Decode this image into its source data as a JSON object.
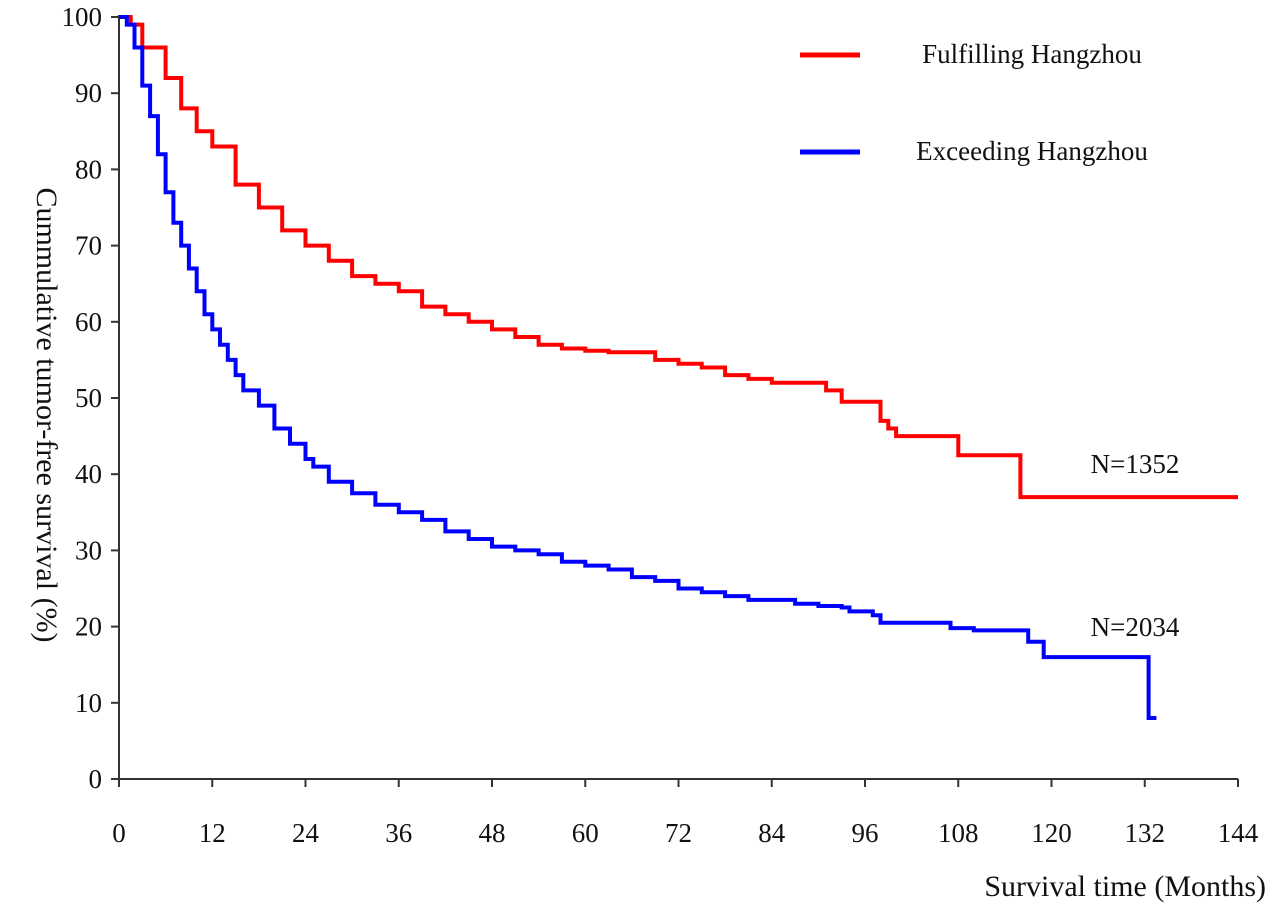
{
  "chart_data": {
    "type": "line",
    "step": true,
    "title": "",
    "xlabel": "Survival time (Months)",
    "ylabel": "Cummulative tumor-free survival (%)",
    "xlim": [
      0,
      144
    ],
    "ylim": [
      0,
      100
    ],
    "xticks": [
      0,
      12,
      24,
      36,
      48,
      60,
      72,
      84,
      96,
      108,
      120,
      132,
      144
    ],
    "yticks": [
      0,
      10,
      20,
      30,
      40,
      50,
      60,
      70,
      80,
      90,
      100
    ],
    "grid": false,
    "legend_position": "top-right",
    "series": [
      {
        "name": "Fulfilling Hangzhou",
        "color": "#ff0000",
        "annotation": "N=1352",
        "points": [
          [
            0,
            100
          ],
          [
            1.5,
            99
          ],
          [
            3,
            96
          ],
          [
            6,
            92
          ],
          [
            8,
            88
          ],
          [
            10,
            85
          ],
          [
            12,
            83
          ],
          [
            15,
            78
          ],
          [
            18,
            75
          ],
          [
            21,
            72
          ],
          [
            24,
            70
          ],
          [
            27,
            68
          ],
          [
            30,
            66
          ],
          [
            33,
            65
          ],
          [
            36,
            64
          ],
          [
            39,
            62
          ],
          [
            42,
            61
          ],
          [
            45,
            60
          ],
          [
            48,
            59
          ],
          [
            51,
            58
          ],
          [
            54,
            57
          ],
          [
            57,
            56.5
          ],
          [
            60,
            56.2
          ],
          [
            63,
            56
          ],
          [
            66,
            56
          ],
          [
            69,
            55
          ],
          [
            72,
            54.5
          ],
          [
            75,
            54
          ],
          [
            78,
            53
          ],
          [
            81,
            52.5
          ],
          [
            84,
            52
          ],
          [
            87,
            52
          ],
          [
            90,
            52
          ],
          [
            91,
            51
          ],
          [
            93,
            49.5
          ],
          [
            96,
            49.5
          ],
          [
            98,
            47
          ],
          [
            99,
            46
          ],
          [
            100,
            45
          ],
          [
            104,
            45
          ],
          [
            108,
            45
          ],
          [
            108,
            42.5
          ],
          [
            112,
            42.5
          ],
          [
            116,
            42.5
          ],
          [
            116,
            37
          ],
          [
            125,
            37
          ],
          [
            135,
            37
          ],
          [
            144,
            37
          ]
        ]
      },
      {
        "name": "Exceeding Hangzhou",
        "color": "#0000ff",
        "annotation": "N=2034",
        "points": [
          [
            0,
            100
          ],
          [
            1,
            99
          ],
          [
            2,
            96
          ],
          [
            3,
            91
          ],
          [
            4,
            87
          ],
          [
            5,
            82
          ],
          [
            6,
            77
          ],
          [
            7,
            73
          ],
          [
            8,
            70
          ],
          [
            9,
            67
          ],
          [
            10,
            64
          ],
          [
            11,
            61
          ],
          [
            12,
            59
          ],
          [
            13,
            57
          ],
          [
            14,
            55
          ],
          [
            15,
            53
          ],
          [
            16,
            51
          ],
          [
            18,
            49
          ],
          [
            20,
            46
          ],
          [
            22,
            44
          ],
          [
            24,
            42
          ],
          [
            25,
            41
          ],
          [
            27,
            39
          ],
          [
            30,
            37.5
          ],
          [
            33,
            36
          ],
          [
            36,
            35
          ],
          [
            39,
            34
          ],
          [
            42,
            32.5
          ],
          [
            45,
            31.5
          ],
          [
            48,
            30.5
          ],
          [
            51,
            30
          ],
          [
            54,
            29.5
          ],
          [
            57,
            28.5
          ],
          [
            60,
            28
          ],
          [
            63,
            27.5
          ],
          [
            66,
            26.5
          ],
          [
            69,
            26
          ],
          [
            72,
            25
          ],
          [
            75,
            24.5
          ],
          [
            78,
            24
          ],
          [
            81,
            23.5
          ],
          [
            84,
            23.5
          ],
          [
            87,
            23
          ],
          [
            90,
            22.7
          ],
          [
            93,
            22.5
          ],
          [
            94,
            22
          ],
          [
            97,
            21.5
          ],
          [
            98,
            20.5
          ],
          [
            102,
            20.5
          ],
          [
            106,
            20.5
          ],
          [
            107,
            19.8
          ],
          [
            110,
            19.5
          ],
          [
            113,
            19.5
          ],
          [
            116,
            19.5
          ],
          [
            117,
            18
          ],
          [
            119,
            18
          ],
          [
            119,
            16
          ],
          [
            125,
            16
          ],
          [
            132.5,
            16
          ],
          [
            132.5,
            8
          ],
          [
            133.5,
            8
          ]
        ]
      }
    ]
  }
}
